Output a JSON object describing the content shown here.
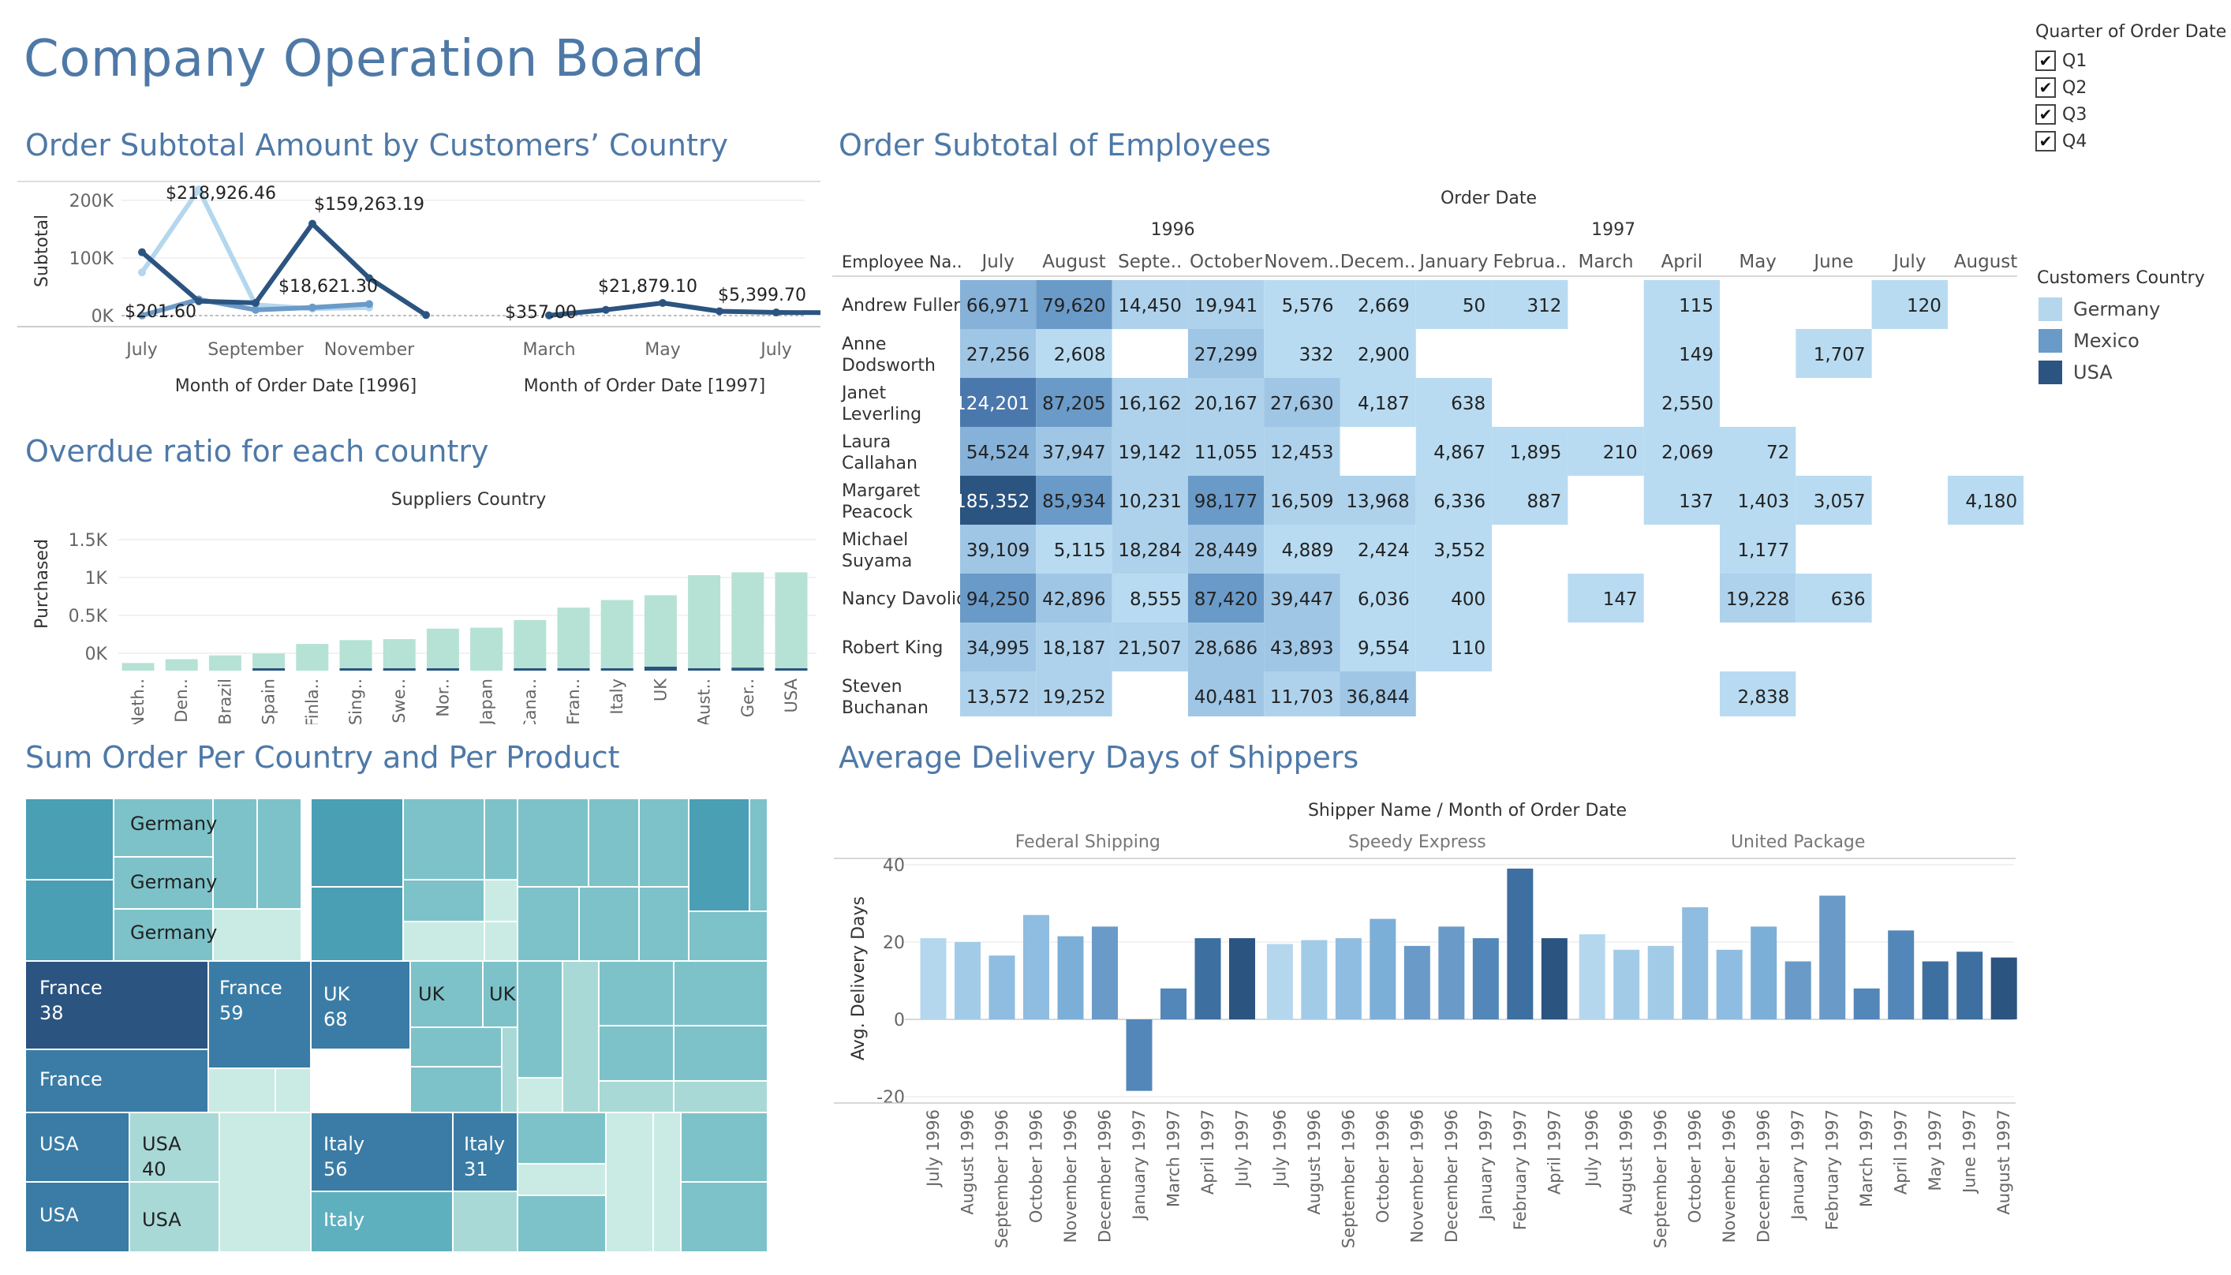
{
  "dashboard": {
    "title": "Company Operation Board"
  },
  "filter": {
    "title": "Quarter of Order Date",
    "items": [
      {
        "label": "Q1",
        "checked": true
      },
      {
        "label": "Q2",
        "checked": true
      },
      {
        "label": "Q3",
        "checked": true
      },
      {
        "label": "Q4",
        "checked": true
      }
    ]
  },
  "legend": {
    "title": "Customers Country",
    "items": [
      {
        "label": "Germany",
        "color": "#b4d7ee"
      },
      {
        "label": "Mexico",
        "color": "#6a9ac8"
      },
      {
        "label": "USA",
        "color": "#2b5480"
      }
    ]
  },
  "sections": {
    "line": "Order Subtotal Amount by Customers’ Country",
    "overdue": "Overdue ratio for each country",
    "treemap": "Sum Order Per Country and Per Product",
    "heatmap": "Order Subtotal of Employees",
    "delivery": "Average Delivery Days of Shippers"
  },
  "chart_data": [
    {
      "id": "line_subtotal",
      "type": "line",
      "ylabel": "Subtotal",
      "yticks": [
        "200K",
        "100K",
        "0K"
      ],
      "ylim": [
        0,
        230000
      ],
      "panels": [
        {
          "xlabel": "Month of Order Date [1996]",
          "months": [
            "July",
            "August",
            "September",
            "October",
            "November",
            "December"
          ],
          "tick_labels": [
            "July",
            "September",
            "November"
          ]
        },
        {
          "xlabel": "Month of Order Date [1997]",
          "months": [
            "January",
            "February",
            "March",
            "April",
            "May",
            "June",
            "July",
            "August"
          ],
          "tick_labels": [
            "March",
            "May",
            "July"
          ]
        }
      ],
      "series": [
        {
          "name": "Germany",
          "color": "#b4d7ee",
          "panel1": [
            75000,
            218926.46,
            18621.3,
            12000,
            14000,
            null
          ],
          "panel2": [
            null,
            null,
            null,
            null,
            null,
            null,
            null,
            null
          ]
        },
        {
          "name": "Mexico",
          "color": "#6a9ac8",
          "panel1": [
            201.6,
            28000,
            10000,
            14000,
            20000,
            null
          ],
          "panel2": [
            null,
            null,
            null,
            null,
            null,
            null,
            null,
            null
          ]
        },
        {
          "name": "USA",
          "color": "#2b5480",
          "panel1": [
            110000,
            25000,
            22000,
            159263.19,
            65000,
            1000
          ],
          "panel2": [
            null,
            null,
            357.0,
            10000,
            21879.1,
            7500,
            5399.7,
            5000
          ]
        }
      ],
      "data_labels": [
        "$218,926.46",
        "$159,263.19",
        "$18,621.30",
        "$201.60",
        "$357.00",
        "$21,879.10",
        "$5,399.70"
      ]
    },
    {
      "id": "overdue_bars",
      "type": "bar",
      "title": "Suppliers Country",
      "ylabel": "Purchased",
      "yticks": [
        "1.5K",
        "1K",
        "0.5K",
        "0K"
      ],
      "ylim": [
        0,
        1800
      ],
      "categories": [
        "Neth..",
        "Den..",
        "Brazil",
        "Spain",
        "Finla..",
        "Sing..",
        "Swe..",
        "Nor..",
        "Japan",
        "Cana..",
        "Fran..",
        "Italy",
        "UK",
        "Aust..",
        "Ger..",
        "USA"
      ],
      "series": [
        {
          "name": "Purchased",
          "color": "#b5e2d5",
          "values": [
            80,
            120,
            160,
            180,
            280,
            320,
            330,
            440,
            450,
            530,
            660,
            740,
            790,
            1000,
            1030,
            1030
          ]
        },
        {
          "name": "Overdue",
          "color": "#2b5480",
          "values": [
            0,
            0,
            0,
            15,
            0,
            5,
            5,
            10,
            0,
            10,
            20,
            10,
            40,
            10,
            30,
            20
          ]
        }
      ]
    },
    {
      "id": "employee_heatmap",
      "type": "heatmap",
      "title": "Order Date",
      "row_header": "Employee Na..",
      "years": [
        {
          "label": "1996",
          "span": 6
        },
        {
          "label": "1997",
          "span": 8
        }
      ],
      "columns": [
        "July",
        "August",
        "Septe..",
        "October",
        "Novem..",
        "Decem..",
        "January",
        "Februa..",
        "March",
        "April",
        "May",
        "June",
        "July",
        "August"
      ],
      "rows": [
        "Andrew Fuller",
        "Anne Dodsworth",
        "Janet Leverling",
        "Laura Callahan",
        "Margaret Peacock",
        "Michael Suyama",
        "Nancy Davolio",
        "Robert King",
        "Steven Buchanan"
      ],
      "values": [
        [
          66971,
          79620,
          14450,
          19941,
          5576,
          2669,
          50,
          312,
          null,
          115,
          null,
          null,
          120,
          null
        ],
        [
          27256,
          2608,
          null,
          27299,
          332,
          2900,
          null,
          null,
          null,
          149,
          null,
          1707,
          null,
          null
        ],
        [
          124201,
          87205,
          16162,
          20167,
          27630,
          4187,
          638,
          null,
          null,
          2550,
          null,
          null,
          null,
          null
        ],
        [
          54524,
          37947,
          19142,
          11055,
          12453,
          null,
          4867,
          1895,
          210,
          2069,
          72,
          null,
          null,
          null
        ],
        [
          185352,
          85934,
          10231,
          98177,
          16509,
          13968,
          6336,
          887,
          null,
          137,
          1403,
          3057,
          null,
          4180
        ],
        [
          39109,
          5115,
          18284,
          28449,
          4889,
          2424,
          3552,
          null,
          null,
          null,
          1177,
          null,
          null,
          null
        ],
        [
          94250,
          42896,
          8555,
          87420,
          39447,
          6036,
          400,
          null,
          147,
          null,
          19228,
          636,
          null,
          null
        ],
        [
          34995,
          18187,
          21507,
          28686,
          43893,
          9554,
          110,
          null,
          null,
          null,
          null,
          null,
          null,
          null
        ],
        [
          13572,
          19252,
          null,
          40481,
          11703,
          36844,
          null,
          null,
          null,
          null,
          2838,
          null,
          null,
          null
        ]
      ]
    },
    {
      "id": "delivery_bars",
      "type": "bar",
      "title": "Shipper Name  /  Month of Order Date",
      "ylabel": "Avg. Delivery Days",
      "yticks": [
        "40",
        "20",
        "0",
        "-20"
      ],
      "ylim": [
        -22,
        42
      ],
      "groups": [
        {
          "name": "Federal Shipping",
          "categories": [
            "July 1996",
            "August 1996",
            "September 1996",
            "October 1996",
            "November 1996",
            "December 1996",
            "January 1997",
            "March 1997",
            "April 1997",
            "July 1997"
          ],
          "values": [
            21,
            20,
            16.5,
            27,
            21.5,
            24,
            -18.5,
            8,
            21,
            21
          ]
        },
        {
          "name": "Speedy Express",
          "categories": [
            "July 1996",
            "August 1996",
            "September 1996",
            "October 1996",
            "November 1996",
            "December 1996",
            "January 1997",
            "February 1997",
            "April 1997"
          ],
          "values": [
            19.5,
            20.5,
            21,
            26,
            19,
            24,
            21,
            39,
            21
          ]
        },
        {
          "name": "United Package",
          "categories": [
            "July 1996",
            "August 1996",
            "September 1996",
            "October 1996",
            "November 1996",
            "December 1996",
            "January 1997",
            "February 1997",
            "March 1997",
            "April 1997",
            "May 1997",
            "June 1997",
            "August 1997"
          ],
          "values": [
            22,
            18,
            19,
            29,
            18,
            24,
            15,
            32,
            8,
            23,
            15,
            17.5,
            16
          ]
        }
      ]
    }
  ],
  "treemap": {
    "labels": [
      {
        "text": "Germany"
      },
      {
        "text": "Germany"
      },
      {
        "text": "Germany"
      },
      {
        "text": "France",
        "value": "38"
      },
      {
        "text": "France",
        "value": "59"
      },
      {
        "text": "France"
      },
      {
        "text": "UK",
        "value": "68"
      },
      {
        "text": "UK"
      },
      {
        "text": "UK"
      },
      {
        "text": "UK"
      },
      {
        "text": "USA"
      },
      {
        "text": "USA",
        "value": "40"
      },
      {
        "text": "USA"
      },
      {
        "text": "USA"
      },
      {
        "text": "Italy",
        "value": "56"
      },
      {
        "text": "Italy",
        "value": "31"
      },
      {
        "text": "Italy"
      }
    ]
  }
}
